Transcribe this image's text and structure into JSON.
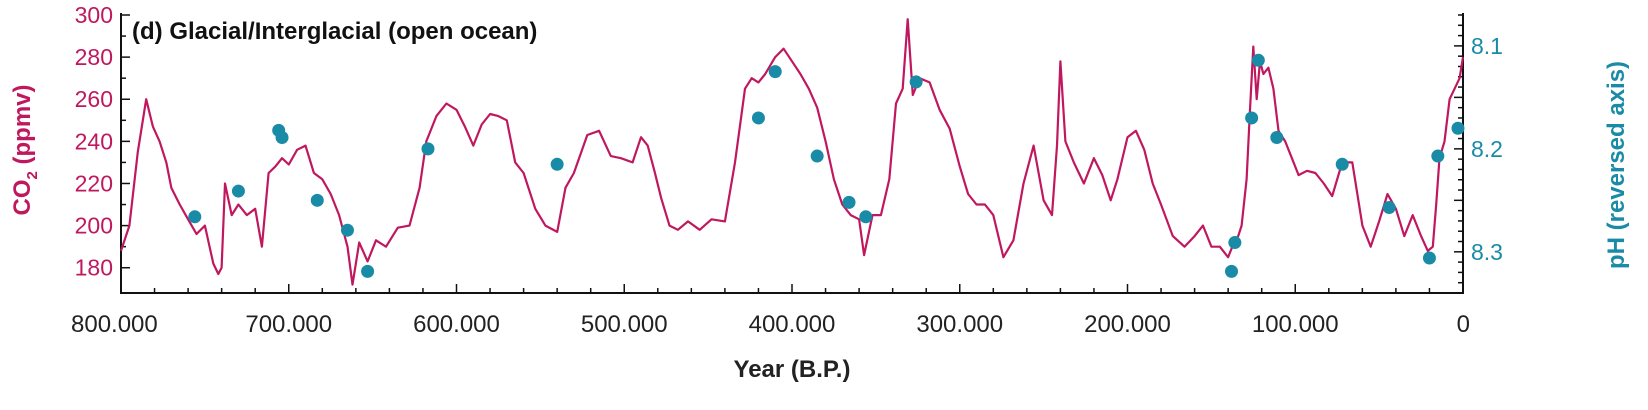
{
  "chart_data": {
    "type": "line",
    "title": "(d) Glacial/Interglacial (open ocean)",
    "xlabel": "Year (B.P.)",
    "xlim": [
      800000,
      0
    ],
    "x_ticks": [
      800000,
      700000,
      600000,
      500000,
      400000,
      300000,
      200000,
      100000,
      0
    ],
    "x_tick_labels": [
      "800.000",
      "700.000",
      "600.000",
      "500.000",
      "400.000",
      "300.000",
      "200.000",
      "100.000",
      "0"
    ],
    "left_axis": {
      "label_main": "CO",
      "label_sub": "2",
      "label_rest": " (ppmv)",
      "ylim": [
        168,
        300
      ],
      "ticks": [
        180,
        200,
        220,
        240,
        260,
        280,
        300
      ],
      "color": "#c0185f"
    },
    "right_axis": {
      "label": "pH (reversed axis)",
      "reversed": true,
      "ylim_top_to_bottom": [
        8.07,
        8.34
      ],
      "ticks": [
        8.1,
        8.2,
        8.3
      ],
      "tick_labels": [
        "8.1",
        "8.2",
        "8.3"
      ],
      "color": "#1a8ba6"
    },
    "series": [
      {
        "kind": "co2",
        "axis": "left",
        "color": "#c0185f",
        "x": [
          800000,
          795000,
          790000,
          785000,
          781000,
          777000,
          773000,
          770000,
          765000,
          760000,
          755000,
          750000,
          745000,
          742000,
          740000,
          738000,
          734000,
          730000,
          725000,
          720000,
          716000,
          712000,
          708000,
          704000,
          700000,
          695000,
          690000,
          685000,
          680000,
          675000,
          670000,
          665000,
          662000,
          658000,
          653000,
          648000,
          642000,
          635000,
          628000,
          622000,
          618000,
          612000,
          606000,
          600000,
          595000,
          590000,
          585000,
          580000,
          575000,
          570000,
          565000,
          560000,
          553000,
          547000,
          540000,
          535000,
          530000,
          522000,
          515000,
          508000,
          502000,
          495000,
          490000,
          486000,
          482000,
          478000,
          473000,
          468000,
          462000,
          455000,
          448000,
          440000,
          434000,
          428000,
          424000,
          420000,
          416000,
          410000,
          405000,
          400000,
          395000,
          390000,
          385000,
          380000,
          375000,
          370000,
          365000,
          360000,
          357000,
          352000,
          347000,
          342000,
          338000,
          334000,
          331000,
          328000,
          324000,
          318000,
          312000,
          306000,
          300000,
          295000,
          290000,
          285000,
          280000,
          274000,
          268000,
          262000,
          256000,
          250000,
          245000,
          242000,
          240000,
          237000,
          232000,
          226000,
          220000,
          215000,
          210000,
          206000,
          200000,
          195000,
          190000,
          185000,
          180000,
          173000,
          166000,
          160000,
          155000,
          150000,
          145000,
          140000,
          136000,
          134000,
          132000,
          129000,
          127000,
          125000,
          123000,
          121000,
          119000,
          116000,
          113000,
          110000,
          106000,
          102000,
          98000,
          93000,
          88000,
          83000,
          78000,
          72000,
          66000,
          60000,
          55000,
          50000,
          45000,
          40000,
          35000,
          30000,
          25000,
          21000,
          18000,
          16000,
          14000,
          11000,
          8000,
          5000,
          2000,
          0
        ],
        "y": [
          188,
          200,
          235,
          260,
          247,
          240,
          230,
          218,
          210,
          203,
          196,
          200,
          182,
          177,
          180,
          220,
          205,
          210,
          205,
          208,
          190,
          225,
          228,
          232,
          229,
          236,
          238,
          225,
          222,
          215,
          205,
          190,
          172,
          192,
          183,
          193,
          190,
          199,
          200,
          218,
          240,
          252,
          258,
          255,
          247,
          238,
          248,
          253,
          252,
          250,
          230,
          225,
          208,
          200,
          197,
          218,
          225,
          243,
          245,
          233,
          232,
          230,
          242,
          238,
          226,
          213,
          200,
          198,
          202,
          198,
          203,
          202,
          230,
          265,
          270,
          268,
          272,
          280,
          284,
          278,
          272,
          265,
          256,
          240,
          222,
          210,
          205,
          203,
          186,
          205,
          205,
          222,
          258,
          265,
          298,
          262,
          270,
          268,
          255,
          246,
          228,
          215,
          210,
          210,
          205,
          185,
          193,
          220,
          238,
          212,
          205,
          238,
          278,
          240,
          230,
          220,
          232,
          224,
          212,
          222,
          242,
          245,
          236,
          220,
          210,
          195,
          190,
          195,
          200,
          190,
          190,
          185,
          193,
          195,
          200,
          222,
          255,
          285,
          260,
          278,
          272,
          275,
          265,
          245,
          240,
          232,
          224,
          226,
          225,
          220,
          214,
          230,
          230,
          200,
          190,
          202,
          215,
          208,
          195,
          205,
          195,
          188,
          190,
          210,
          232,
          240,
          260,
          265,
          270,
          280
        ]
      },
      {
        "kind": "ph",
        "axis": "right",
        "marker": "dot",
        "color": "#1a8ba6",
        "x": [
          756000,
          730000,
          706000,
          704000,
          683000,
          665000,
          653000,
          617000,
          540000,
          420000,
          410000,
          385000,
          366000,
          356000,
          326000,
          138000,
          136000,
          126000,
          122000,
          111000,
          72000,
          44000,
          20000,
          15000,
          3000
        ],
        "y": [
          8.266,
          8.241,
          8.182,
          8.189,
          8.25,
          8.279,
          8.319,
          8.2,
          8.215,
          8.17,
          8.125,
          8.207,
          8.252,
          8.266,
          8.135,
          8.319,
          8.291,
          8.17,
          8.114,
          8.189,
          8.215,
          8.257,
          8.306,
          8.207,
          8.18
        ]
      }
    ]
  }
}
